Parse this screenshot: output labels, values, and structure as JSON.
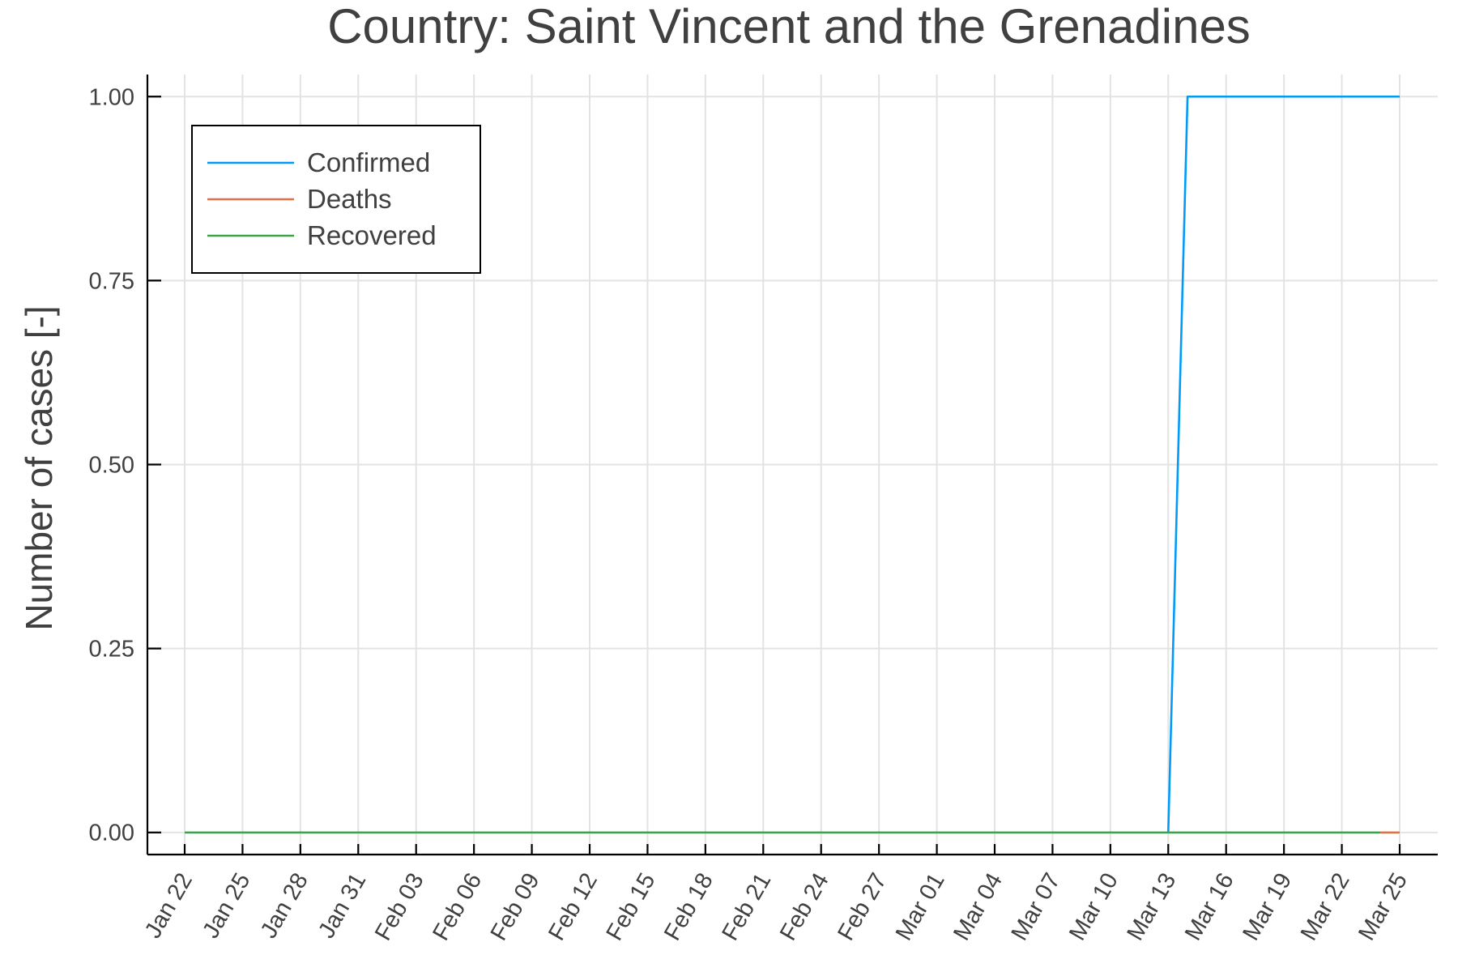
{
  "chart_data": {
    "type": "line",
    "title": "Country: Saint Vincent and the Grenadines",
    "xlabel": "",
    "ylabel": "Number of cases [-]",
    "x_tick_labels": [
      "Jan 22",
      "Jan 25",
      "Jan 28",
      "Jan 31",
      "Feb 03",
      "Feb 06",
      "Feb 09",
      "Feb 12",
      "Feb 15",
      "Feb 18",
      "Feb 21",
      "Feb 24",
      "Feb 27",
      "Mar 01",
      "Mar 04",
      "Mar 07",
      "Mar 10",
      "Mar 13",
      "Mar 16",
      "Mar 19",
      "Mar 22",
      "Mar 25"
    ],
    "y_tick_labels": [
      "0.00",
      "0.25",
      "0.50",
      "0.75",
      "1.00"
    ],
    "y_ticks": [
      0,
      0.25,
      0.5,
      0.75,
      1.0
    ],
    "ylim": [
      -0.03,
      1.03
    ],
    "xlim": [
      "2020-01-22",
      "2020-03-25"
    ],
    "grid": true,
    "legend_position": "top-left",
    "series": [
      {
        "name": "Confirmed",
        "color": "#009af9",
        "x": [
          "2020-01-22",
          "2020-03-13",
          "2020-03-14",
          "2020-03-25"
        ],
        "values": [
          0,
          0,
          1,
          1
        ]
      },
      {
        "name": "Deaths",
        "color": "#e26f46",
        "x": [
          "2020-01-22",
          "2020-03-25"
        ],
        "values": [
          0,
          0
        ]
      },
      {
        "name": "Recovered",
        "color": "#3da44d",
        "x": [
          "2020-01-22",
          "2020-03-24"
        ],
        "values": [
          0,
          0
        ]
      }
    ]
  }
}
